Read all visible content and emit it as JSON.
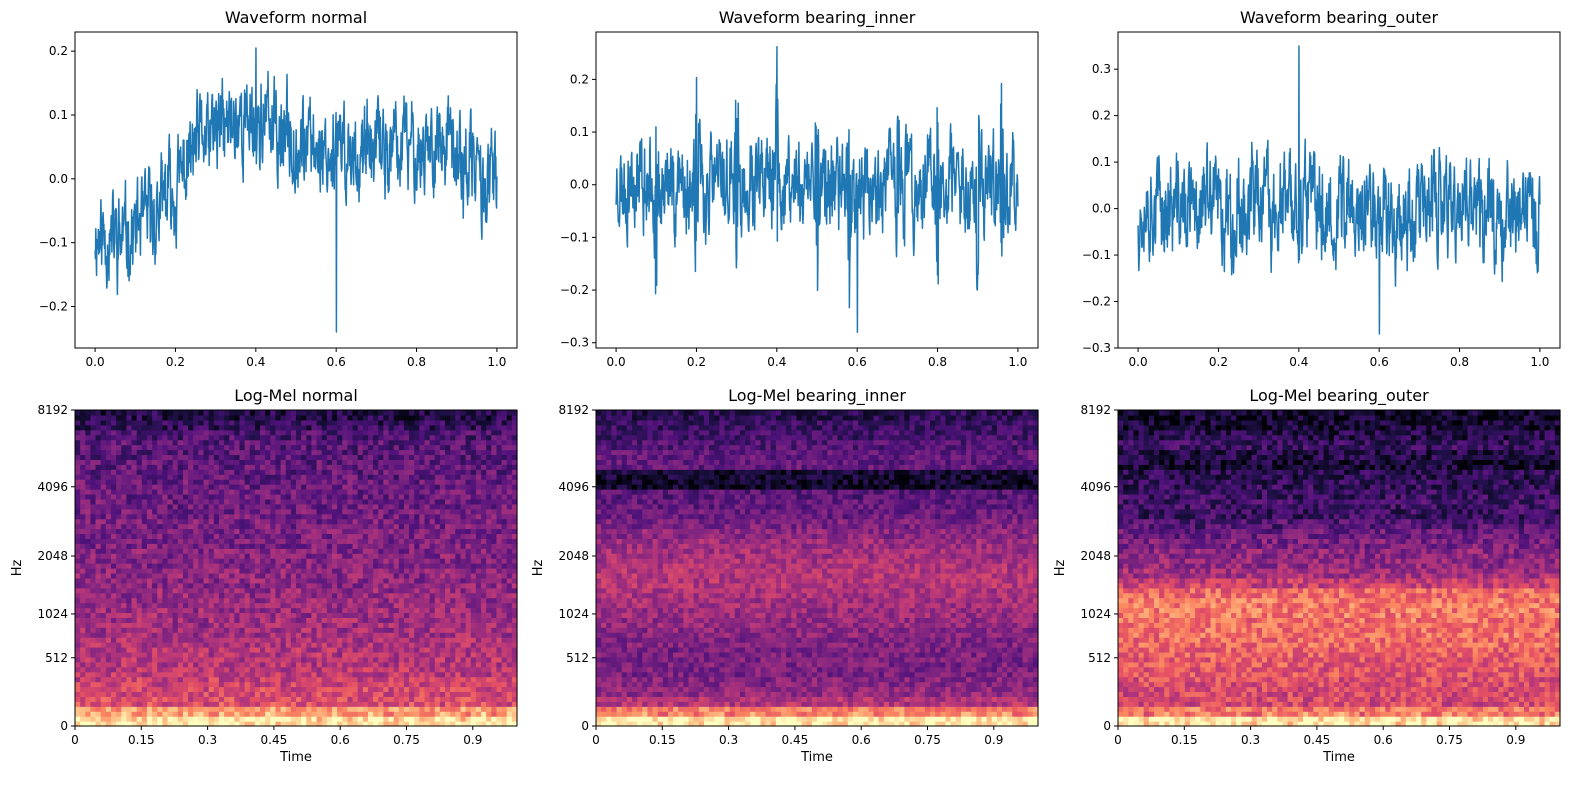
{
  "chart_data": [
    {
      "type": "line",
      "title": "Waveform normal",
      "xlabel": "",
      "ylabel": "",
      "xlim": [
        -0.05,
        1.05
      ],
      "ylim": [
        -0.265,
        0.23
      ],
      "xticks": [
        0.0,
        0.2,
        0.4,
        0.6,
        0.8,
        1.0
      ],
      "xtick_labels": [
        "0.0",
        "0.2",
        "0.4",
        "0.6",
        "0.8",
        "1.0"
      ],
      "yticks": [
        -0.2,
        -0.1,
        0.0,
        0.1,
        0.2
      ],
      "ytick_labels": [
        "−0.2",
        "−0.1",
        "0.0",
        "0.1",
        "0.2"
      ],
      "color": "#1f77b4",
      "grid": false,
      "trend": {
        "x": [
          0.0,
          0.05,
          0.1,
          0.15,
          0.2,
          0.25,
          0.3,
          0.35,
          0.4,
          0.45,
          0.5,
          0.55,
          0.6,
          0.65,
          0.7,
          0.75,
          0.8,
          0.85,
          0.9,
          0.95,
          1.0
        ],
        "y": [
          -0.08,
          -0.09,
          -0.08,
          -0.06,
          -0.01,
          0.04,
          0.07,
          0.09,
          0.09,
          0.08,
          0.06,
          0.05,
          0.04,
          0.04,
          0.04,
          0.05,
          0.05,
          0.05,
          0.03,
          0.01,
          -0.02
        ]
      },
      "y_min": -0.24,
      "y_max": 0.205,
      "amplitude": 0.06,
      "seed": 11
    },
    {
      "type": "line",
      "title": "Waveform bearing_inner",
      "xlabel": "",
      "ylabel": "",
      "xlim": [
        -0.05,
        1.05
      ],
      "ylim": [
        -0.31,
        0.29
      ],
      "xticks": [
        0.0,
        0.2,
        0.4,
        0.6,
        0.8,
        1.0
      ],
      "xtick_labels": [
        "0.0",
        "0.2",
        "0.4",
        "0.6",
        "0.8",
        "1.0"
      ],
      "yticks": [
        -0.3,
        -0.2,
        -0.1,
        0.0,
        0.1,
        0.2
      ],
      "ytick_labels": [
        "−0.3",
        "−0.2",
        "−0.1",
        "0.0",
        "0.1",
        "0.2"
      ],
      "color": "#1f77b4",
      "grid": false,
      "trend": {
        "x": [
          0.0,
          0.5,
          1.0
        ],
        "y": [
          0.0,
          0.0,
          0.0
        ]
      },
      "y_min": -0.28,
      "y_max": 0.262,
      "amplitude": 0.075,
      "spikes": [
        0.1,
        0.2,
        0.3,
        0.4,
        0.5,
        0.58,
        0.7,
        0.8,
        0.9,
        0.96
      ],
      "seed": 23
    },
    {
      "type": "line",
      "title": "Waveform bearing_outer",
      "xlabel": "",
      "ylabel": "",
      "xlim": [
        -0.05,
        1.05
      ],
      "ylim": [
        -0.3,
        0.38
      ],
      "xticks": [
        0.0,
        0.2,
        0.4,
        0.6,
        0.8,
        1.0
      ],
      "xtick_labels": [
        "0.0",
        "0.2",
        "0.4",
        "0.6",
        "0.8",
        "1.0"
      ],
      "yticks": [
        -0.3,
        -0.2,
        -0.1,
        0.0,
        0.1,
        0.2,
        0.3
      ],
      "ytick_labels": [
        "−0.3",
        "−0.2",
        "−0.1",
        "0.0",
        "0.1",
        "0.2",
        "0.3"
      ],
      "color": "#1f77b4",
      "grid": false,
      "trend": {
        "x": [
          0.0,
          0.5,
          1.0
        ],
        "y": [
          0.0,
          0.0,
          0.0
        ]
      },
      "y_min": -0.27,
      "y_max": 0.35,
      "amplitude": 0.09,
      "seed": 37
    },
    {
      "type": "heatmap",
      "title": "Log-Mel normal",
      "xlabel": "Time",
      "ylabel": "Hz",
      "xlim": [
        0,
        1.0
      ],
      "yscale": "mel",
      "ylim_hz": [
        0,
        8192
      ],
      "xticks": [
        0,
        0.15,
        0.3,
        0.45,
        0.6,
        0.75,
        0.9
      ],
      "xtick_labels": [
        "0",
        "0.15",
        "0.3",
        "0.45",
        "0.6",
        "0.75",
        "0.9"
      ],
      "yticks_hz": [
        0,
        512,
        1024,
        2048,
        4096,
        8192
      ],
      "ytick_labels": [
        "0",
        "512",
        "1024",
        "2048",
        "4096",
        "8192"
      ],
      "colormap": "magma",
      "intensity_profile": [
        0.95,
        0.8,
        0.6,
        0.58,
        0.55,
        0.52,
        0.5,
        0.5,
        0.48,
        0.46,
        0.45,
        0.44,
        0.42,
        0.42,
        0.4,
        0.4,
        0.38,
        0.38,
        0.36,
        0.36,
        0.35,
        0.34,
        0.33,
        0.32,
        0.32,
        0.3,
        0.3,
        0.28,
        0.28,
        0.25,
        0.18,
        0.14
      ],
      "noise": 0.12,
      "seed": 51
    },
    {
      "type": "heatmap",
      "title": "Log-Mel bearing_inner",
      "xlabel": "Time",
      "ylabel": "Hz",
      "xlim": [
        0,
        1.0
      ],
      "yscale": "mel",
      "ylim_hz": [
        0,
        8192
      ],
      "xticks": [
        0,
        0.15,
        0.3,
        0.45,
        0.6,
        0.75,
        0.9
      ],
      "xtick_labels": [
        "0",
        "0.15",
        "0.3",
        "0.45",
        "0.6",
        "0.75",
        "0.9"
      ],
      "yticks_hz": [
        0,
        512,
        1024,
        2048,
        4096,
        8192
      ],
      "ytick_labels": [
        "0",
        "512",
        "1024",
        "2048",
        "4096",
        "8192"
      ],
      "colormap": "magma",
      "intensity_profile": [
        0.97,
        0.75,
        0.5,
        0.42,
        0.38,
        0.36,
        0.36,
        0.36,
        0.38,
        0.4,
        0.42,
        0.44,
        0.46,
        0.48,
        0.5,
        0.5,
        0.48,
        0.46,
        0.44,
        0.4,
        0.36,
        0.32,
        0.3,
        0.28,
        0.08,
        0.1,
        0.3,
        0.3,
        0.26,
        0.22,
        0.2,
        0.16
      ],
      "noise": 0.1,
      "seed": 63
    },
    {
      "type": "heatmap",
      "title": "Log-Mel bearing_outer",
      "xlabel": "Time",
      "ylabel": "Hz",
      "xlim": [
        0,
        1.0
      ],
      "yscale": "mel",
      "ylim_hz": [
        0,
        8192
      ],
      "xticks": [
        0,
        0.15,
        0.3,
        0.45,
        0.6,
        0.75,
        0.9
      ],
      "xtick_labels": [
        "0",
        "0.15",
        "0.3",
        "0.45",
        "0.6",
        "0.75",
        "0.9"
      ],
      "yticks_hz": [
        0,
        512,
        1024,
        2048,
        4096,
        8192
      ],
      "ytick_labels": [
        "0",
        "512",
        "1024",
        "2048",
        "4096",
        "8192"
      ],
      "colormap": "magma",
      "intensity_profile": [
        0.95,
        0.72,
        0.58,
        0.58,
        0.6,
        0.62,
        0.64,
        0.66,
        0.68,
        0.7,
        0.7,
        0.72,
        0.72,
        0.68,
        0.55,
        0.46,
        0.42,
        0.4,
        0.36,
        0.32,
        0.26,
        0.2,
        0.22,
        0.2,
        0.18,
        0.16,
        0.1,
        0.14,
        0.2,
        0.14,
        0.1,
        0.08
      ],
      "noise": 0.12,
      "seed": 77
    }
  ]
}
